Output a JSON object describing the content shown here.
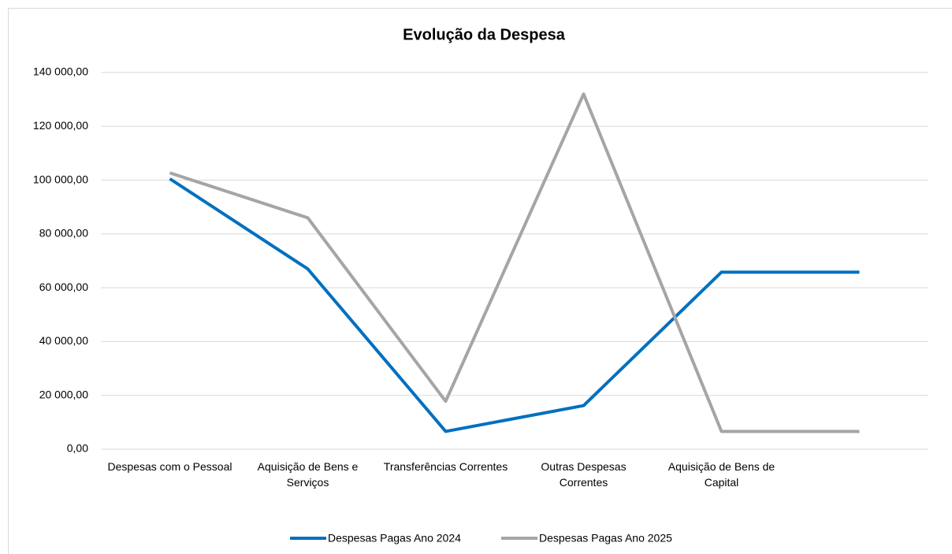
{
  "chart_data": {
    "type": "line",
    "title": "Evolução da Despesa",
    "categories": [
      "Despesas com o Pessoal",
      "Aquisição de Bens e Serviços",
      "Transferências Correntes",
      "Outras Despesas Correntes",
      "Aquisição de Bens de Capital",
      null
    ],
    "series": [
      {
        "name": "Despesas Pagas Ano 2024",
        "color": "#0070c0",
        "values": [
          100500,
          67000,
          6600,
          16200,
          65800,
          65800
        ]
      },
      {
        "name": "Despesas Pagas Ano 2025",
        "color": "#a5a5a5",
        "values": [
          102700,
          86000,
          17800,
          132000,
          6600,
          6600
        ]
      }
    ],
    "ylim": [
      0,
      140000
    ],
    "yticks": [
      {
        "value": 0,
        "label": "0,00"
      },
      {
        "value": 20000,
        "label": "20 000,00"
      },
      {
        "value": 40000,
        "label": "40 000,00"
      },
      {
        "value": 60000,
        "label": "60 000,00"
      },
      {
        "value": 80000,
        "label": "80 000,00"
      },
      {
        "value": 100000,
        "label": "100 000,00"
      },
      {
        "value": 120000,
        "label": "120 000,00"
      },
      {
        "value": 140000,
        "label": "140 000,00"
      }
    ],
    "grid": true,
    "legend": "bottom"
  }
}
